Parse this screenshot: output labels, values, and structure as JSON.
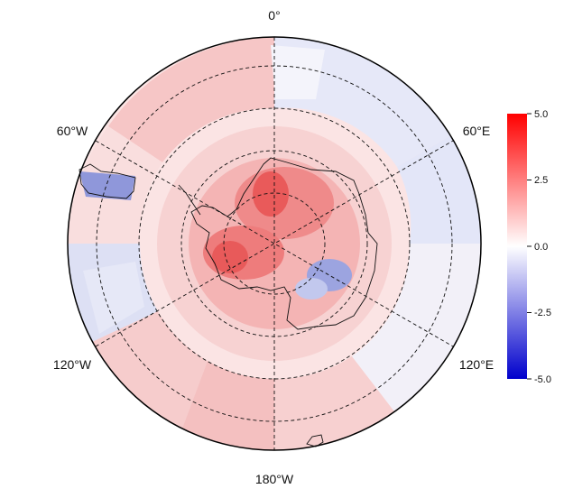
{
  "map": {
    "projection": "south-polar-stereographic",
    "grid_style": "dashed",
    "longitude_labels": {
      "top": "0°",
      "upper_left": "60°W",
      "upper_right": "60°E",
      "lower_left": "120°W",
      "lower_right": "120°E",
      "bottom": "180°W"
    }
  },
  "colorbar": {
    "min": -5.0,
    "max": 5.0,
    "ticks": [
      "5.0",
      "2.5",
      "0.0",
      "-2.5",
      "-5.0"
    ],
    "colors": {
      "low": "#0000cc",
      "mid": "#ffffff",
      "high": "#ff0000"
    }
  },
  "field": {
    "description_legend": "anomaly shown in diverging blue-white-red",
    "coverage": "Southern Hemisphere"
  }
}
